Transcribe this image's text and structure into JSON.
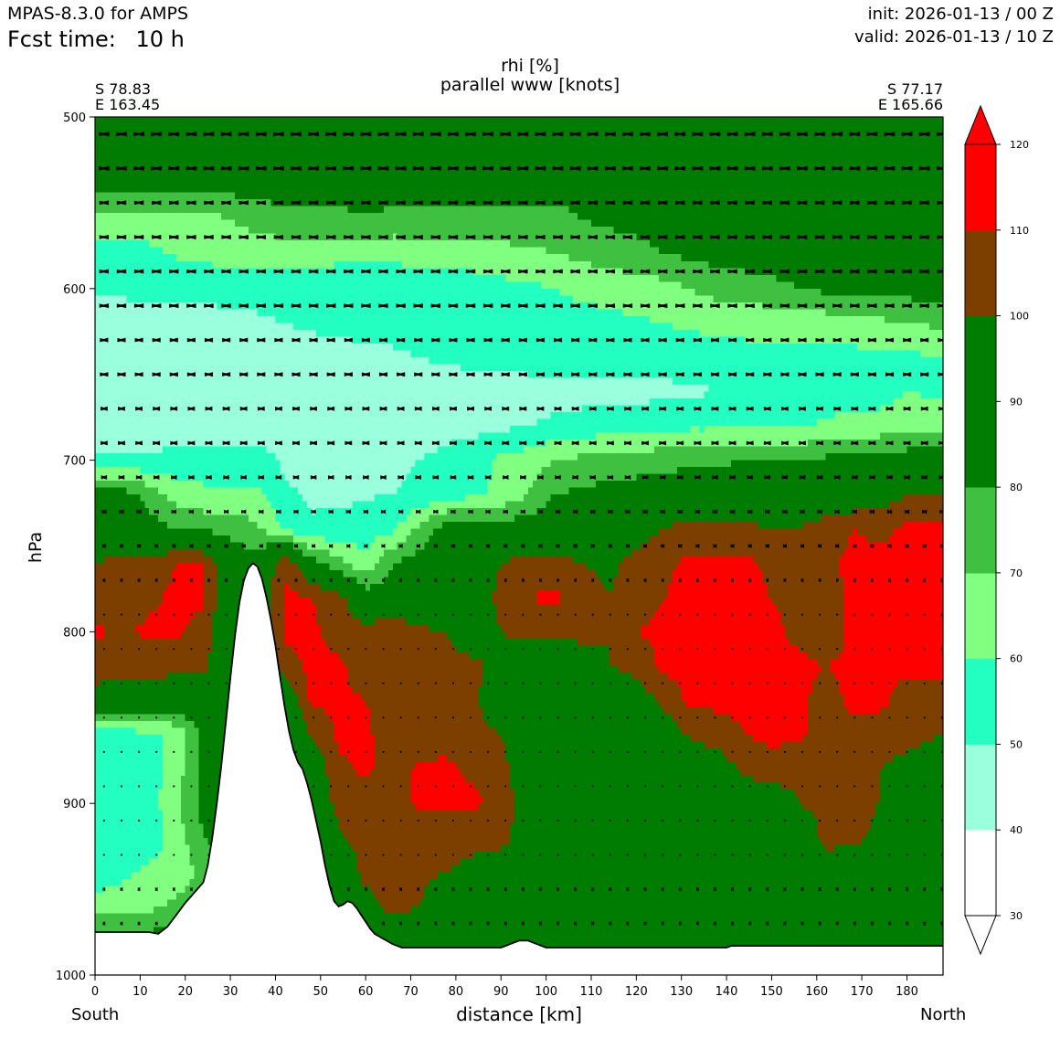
{
  "header": {
    "model_label": "MPAS-8.3.0 for AMPS",
    "fcst_label": "Fcst time:",
    "fcst_value": "10 h",
    "init_text": "init: 2026-01-13 / 00 Z",
    "valid_text": "valid: 2026-01-13 / 10 Z"
  },
  "chart_data": {
    "type": "heatmap",
    "title": "rhi [%]",
    "subtitle": "parallel www [knots]",
    "xlabel": "distance [km]",
    "ylabel": "hPa",
    "xlim": [
      0,
      188
    ],
    "ylim": [
      1000,
      500
    ],
    "x_ticks": [
      0,
      10,
      20,
      30,
      40,
      50,
      60,
      70,
      80,
      90,
      100,
      110,
      120,
      130,
      140,
      150,
      160,
      170,
      180
    ],
    "y_ticks": [
      500,
      600,
      700,
      800,
      900,
      1000
    ],
    "start_point": {
      "lat": "S 78.83",
      "lon": "E 163.45",
      "name": "South"
    },
    "end_point": {
      "lat": "S 77.17",
      "lon": "E 165.66",
      "name": "North"
    },
    "colorbar": {
      "levels": [
        30,
        40,
        50,
        60,
        70,
        80,
        90,
        100,
        110,
        120
      ],
      "bands": [
        {
          "from": 30,
          "to": 40,
          "color": "#ffffff"
        },
        {
          "from": 40,
          "to": 50,
          "color": "#99ffdd"
        },
        {
          "from": 50,
          "to": 60,
          "color": "#22ffc0"
        },
        {
          "from": 60,
          "to": 70,
          "color": "#80ff80"
        },
        {
          "from": 70,
          "to": 80,
          "color": "#40c040"
        },
        {
          "from": 80,
          "to": 100,
          "color": "#007d00"
        },
        {
          "from": 100,
          "to": 110,
          "color": "#7d3f00"
        },
        {
          "from": 110,
          "to": 120,
          "color": "#ff0000"
        }
      ],
      "extend": "both"
    },
    "terrain_profile": {
      "distance_km": [
        0,
        12,
        14,
        16,
        18,
        20,
        22,
        24,
        25,
        26,
        27,
        28,
        29,
        30,
        31,
        32,
        33,
        34,
        35,
        36,
        37,
        38,
        39,
        40,
        41,
        42,
        43,
        44,
        45,
        46,
        47,
        48,
        49,
        50,
        51,
        52,
        53,
        54,
        55,
        56,
        57,
        58,
        59,
        60,
        61,
        62,
        64,
        66,
        68,
        70,
        72,
        75,
        80,
        85,
        90,
        91,
        92,
        93,
        94,
        95,
        96,
        97,
        98,
        99,
        100,
        110,
        120,
        130,
        140,
        141,
        150,
        160,
        170,
        180,
        188
      ],
      "pressure_hpa": [
        975,
        975,
        976,
        972,
        965,
        958,
        952,
        946,
        936,
        920,
        900,
        878,
        853,
        827,
        803,
        783,
        770,
        763,
        760,
        762,
        769,
        780,
        793,
        808,
        826,
        843,
        858,
        869,
        876,
        880,
        888,
        898,
        910,
        922,
        936,
        948,
        957,
        960,
        959,
        957,
        958,
        961,
        965,
        969,
        973,
        976,
        979,
        982,
        984,
        984,
        984,
        984,
        984,
        984,
        984,
        983,
        982,
        981,
        980,
        980,
        980,
        981,
        982,
        983,
        984,
        984,
        984,
        984,
        984,
        983,
        983,
        983,
        983,
        983,
        983
      ]
    },
    "rhi_field": {
      "distance_km": [
        0,
        6,
        12,
        18,
        24,
        30,
        36,
        42,
        48,
        54,
        60,
        66,
        72,
        78,
        84,
        90,
        96,
        102,
        108,
        114,
        120,
        126,
        132,
        138,
        144,
        150,
        156,
        162,
        168,
        174,
        180,
        188
      ],
      "pressure_hpa": [
        500,
        520,
        540,
        560,
        580,
        600,
        620,
        640,
        660,
        680,
        700,
        720,
        740,
        760,
        780,
        800,
        820,
        840,
        860,
        880,
        900,
        920,
        940,
        960,
        980,
        1000
      ],
      "rhi_percent": [
        [
          88,
          88,
          88,
          88,
          88,
          88,
          88,
          88,
          88,
          88,
          88,
          88,
          88,
          88,
          88,
          88,
          88,
          88,
          88,
          88,
          88,
          88,
          88,
          88,
          88,
          88,
          88,
          88,
          88,
          88,
          88,
          88
        ],
        [
          86,
          86,
          86,
          86,
          86,
          86,
          86,
          86,
          86,
          86,
          86,
          86,
          86,
          86,
          86,
          86,
          86,
          86,
          86,
          86,
          86,
          86,
          86,
          86,
          86,
          86,
          86,
          86,
          86,
          86,
          86,
          86
        ],
        [
          84,
          84,
          84,
          84,
          84,
          84,
          84,
          84,
          84,
          84,
          84,
          84,
          84,
          84,
          84,
          84,
          84,
          84,
          84,
          84,
          84,
          84,
          84,
          84,
          84,
          84,
          84,
          84,
          84,
          84,
          84,
          84
        ],
        [
          65,
          65,
          65,
          65,
          66,
          70,
          74,
          78,
          78,
          78,
          79,
          78,
          78,
          78,
          78,
          78,
          78,
          76,
          80,
          82,
          82,
          82,
          82,
          82,
          82,
          82,
          82,
          82,
          82,
          82,
          82,
          82
        ],
        [
          55,
          56,
          58,
          61,
          62,
          63,
          63,
          63,
          63,
          62,
          62,
          62,
          62,
          63,
          64,
          66,
          68,
          70,
          72,
          75,
          78,
          80,
          82,
          84,
          84,
          84,
          84,
          84,
          84,
          84,
          84,
          84
        ],
        [
          52,
          52,
          53,
          53,
          54,
          55,
          55,
          55,
          55,
          55,
          55,
          55,
          56,
          56,
          56,
          57,
          58,
          60,
          62,
          63,
          64,
          66,
          70,
          74,
          76,
          78,
          80,
          82,
          82,
          84,
          84,
          85
        ],
        [
          45,
          45,
          45,
          45,
          45,
          46,
          48,
          50,
          52,
          54,
          55,
          55,
          55,
          55,
          55,
          56,
          56,
          57,
          57,
          58,
          59,
          60,
          61,
          62,
          62,
          63,
          64,
          65,
          66,
          68,
          70,
          72
        ],
        [
          44,
          44,
          44,
          44,
          44,
          44,
          44,
          44,
          44,
          45,
          46,
          48,
          50,
          52,
          53,
          54,
          55,
          55,
          55,
          55,
          56,
          56,
          57,
          57,
          58,
          57,
          56,
          56,
          57,
          58,
          58,
          60
        ],
        [
          44,
          44,
          44,
          44,
          44,
          44,
          44,
          44,
          44,
          44,
          44,
          44,
          44,
          44,
          44,
          44,
          45,
          46,
          46,
          46,
          47,
          47,
          48,
          50,
          53,
          54,
          50,
          54,
          55,
          56,
          60,
          58
        ],
        [
          44,
          44,
          44,
          44,
          44,
          44,
          44,
          44,
          44,
          44,
          44,
          44,
          45,
          46,
          47,
          48,
          50,
          52,
          54,
          55,
          56,
          58,
          58,
          58,
          58,
          58,
          58,
          62,
          63,
          64,
          66,
          68
        ],
        [
          52,
          52,
          52,
          53,
          55,
          55,
          55,
          48,
          46,
          46,
          47,
          48,
          50,
          53,
          56,
          62,
          65,
          70,
          72,
          74,
          74,
          76,
          78,
          78,
          80,
          82,
          80,
          82,
          84,
          84,
          86,
          88
        ],
        [
          85,
          85,
          76,
          66,
          62,
          62,
          62,
          52,
          48,
          48,
          49,
          50,
          52,
          55,
          58,
          62,
          70,
          80,
          82,
          84,
          86,
          86,
          88,
          90,
          90,
          90,
          90,
          90,
          90,
          94,
          100,
          100
        ],
        [
          85,
          85,
          85,
          80,
          78,
          76,
          72,
          58,
          52,
          52,
          55,
          58,
          72,
          86,
          86,
          86,
          86,
          88,
          88,
          90,
          95,
          100,
          104,
          104,
          102,
          100,
          100,
          105,
          110,
          108,
          112,
          112
        ],
        [
          100,
          106,
          104,
          110,
          110,
          88,
          85,
          110,
          85,
          74,
          62,
          80,
          85,
          88,
          90,
          100,
          105,
          104,
          100,
          98,
          104,
          108,
          112,
          112,
          112,
          108,
          104,
          108,
          112,
          112,
          112,
          112
        ],
        [
          104,
          106,
          108,
          112,
          112,
          86,
          85,
          112,
          110,
          104,
          86,
          88,
          86,
          88,
          90,
          104,
          110,
          112,
          104,
          100,
          104,
          110,
          112,
          112,
          112,
          110,
          106,
          106,
          112,
          112,
          112,
          112
        ],
        [
          112,
          108,
          112,
          112,
          106,
          86,
          85,
          112,
          112,
          106,
          104,
          110,
          102,
          100,
          90,
          100,
          104,
          102,
          102,
          100,
          110,
          112,
          112,
          112,
          112,
          112,
          108,
          104,
          112,
          112,
          112,
          112
        ],
        [
          106,
          104,
          104,
          104,
          104,
          86,
          85,
          106,
          112,
          112,
          104,
          108,
          104,
          102,
          104,
          92,
          88,
          90,
          96,
          100,
          104,
          112,
          112,
          112,
          112,
          112,
          112,
          110,
          112,
          112,
          112,
          112
        ],
        [
          95,
          92,
          92,
          90,
          88,
          86,
          85,
          88,
          112,
          112,
          110,
          104,
          104,
          104,
          102,
          90,
          86,
          86,
          86,
          88,
          92,
          104,
          112,
          112,
          112,
          112,
          112,
          106,
          112,
          112,
          106,
          106
        ],
        [
          55,
          55,
          58,
          62,
          84,
          86,
          85,
          88,
          100,
          112,
          112,
          104,
          104,
          106,
          104,
          100,
          88,
          86,
          86,
          86,
          86,
          90,
          102,
          106,
          110,
          112,
          112,
          104,
          108,
          106,
          104,
          100
        ],
        [
          52,
          52,
          55,
          65,
          84,
          86,
          85,
          88,
          90,
          108,
          112,
          104,
          112,
          112,
          108,
          104,
          90,
          86,
          86,
          86,
          86,
          86,
          88,
          92,
          104,
          106,
          104,
          104,
          104,
          100,
          96,
          92
        ],
        [
          52,
          52,
          55,
          68,
          84,
          86,
          85,
          88,
          88,
          104,
          106,
          104,
          112,
          112,
          112,
          106,
          95,
          86,
          86,
          86,
          86,
          86,
          86,
          86,
          88,
          92,
          100,
          104,
          104,
          100,
          92,
          90
        ],
        [
          50,
          52,
          55,
          64,
          80,
          86,
          85,
          88,
          88,
          98,
          104,
          104,
          104,
          104,
          104,
          104,
          92,
          88,
          86,
          86,
          86,
          86,
          86,
          86,
          86,
          86,
          88,
          104,
          104,
          96,
          92,
          90
        ],
        [
          55,
          58,
          62,
          64,
          72,
          86,
          85,
          88,
          88,
          90,
          104,
          104,
          102,
          100,
          96,
          92,
          88,
          86,
          86,
          86,
          86,
          86,
          86,
          86,
          86,
          86,
          86,
          92,
          88,
          88,
          88,
          90
        ],
        [
          64,
          64,
          68,
          72,
          76,
          86,
          85,
          88,
          88,
          88,
          95,
          104,
          100,
          92,
          88,
          86,
          86,
          86,
          86,
          86,
          86,
          86,
          86,
          86,
          86,
          86,
          86,
          88,
          88,
          88,
          88,
          88
        ],
        [
          85,
          85,
          85,
          85,
          85,
          86,
          85,
          88,
          88,
          88,
          88,
          88,
          88,
          88,
          88,
          86,
          86,
          86,
          86,
          86,
          86,
          86,
          86,
          86,
          86,
          86,
          86,
          86,
          86,
          86,
          86,
          86
        ],
        [
          85,
          85,
          85,
          85,
          85,
          86,
          85,
          88,
          88,
          88,
          88,
          88,
          88,
          88,
          88,
          86,
          86,
          86,
          86,
          86,
          86,
          86,
          86,
          86,
          86,
          86,
          86,
          86,
          86,
          86,
          86,
          86
        ]
      ]
    },
    "wind_vectors": {
      "description_levels_hpa": [
        510,
        530,
        550,
        570,
        590,
        610,
        630,
        650,
        670,
        690,
        710,
        730,
        750,
        770,
        790,
        810,
        830,
        850,
        870,
        890,
        910,
        930,
        950,
        970
      ],
      "parallel_knots": [
        -9,
        -9,
        -8,
        -8,
        -8,
        -8,
        -7,
        -7,
        -6,
        -6,
        -5,
        -4,
        -3,
        -2,
        -1,
        -1,
        -1,
        -1,
        -1,
        -1,
        -1,
        -1,
        -2,
        -2
      ]
    }
  }
}
